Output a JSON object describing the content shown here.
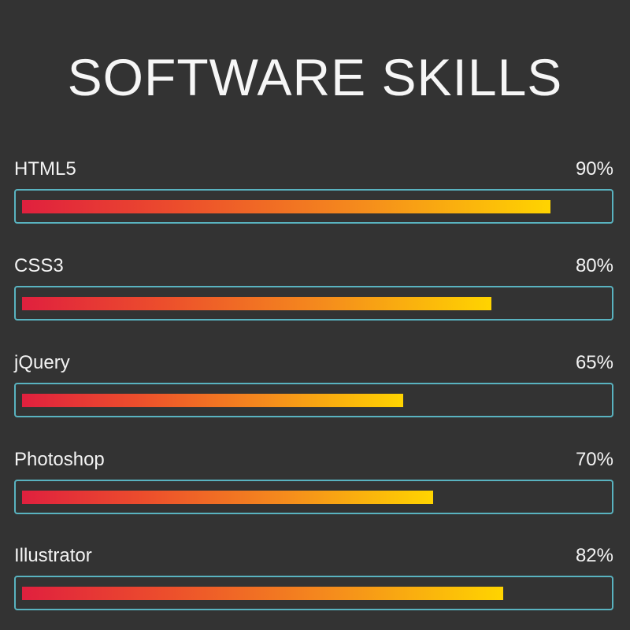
{
  "title": "SOFTWARE SKILLS",
  "skills": [
    {
      "name": "HTML5",
      "percent_label": "90%",
      "fill_percent": 90
    },
    {
      "name": "CSS3",
      "percent_label": "80%",
      "fill_percent": 80
    },
    {
      "name": "jQuery",
      "percent_label": "65%",
      "fill_percent": 65
    },
    {
      "name": "Photoshop",
      "percent_label": "70%",
      "fill_percent": 70
    },
    {
      "name": "Illustrator",
      "percent_label": "82%",
      "fill_percent": 82
    }
  ],
  "colors": {
    "background": "#333333",
    "track_border": "#59b3c0",
    "fill_start": "#e0203e",
    "fill_end": "#ffd400"
  }
}
